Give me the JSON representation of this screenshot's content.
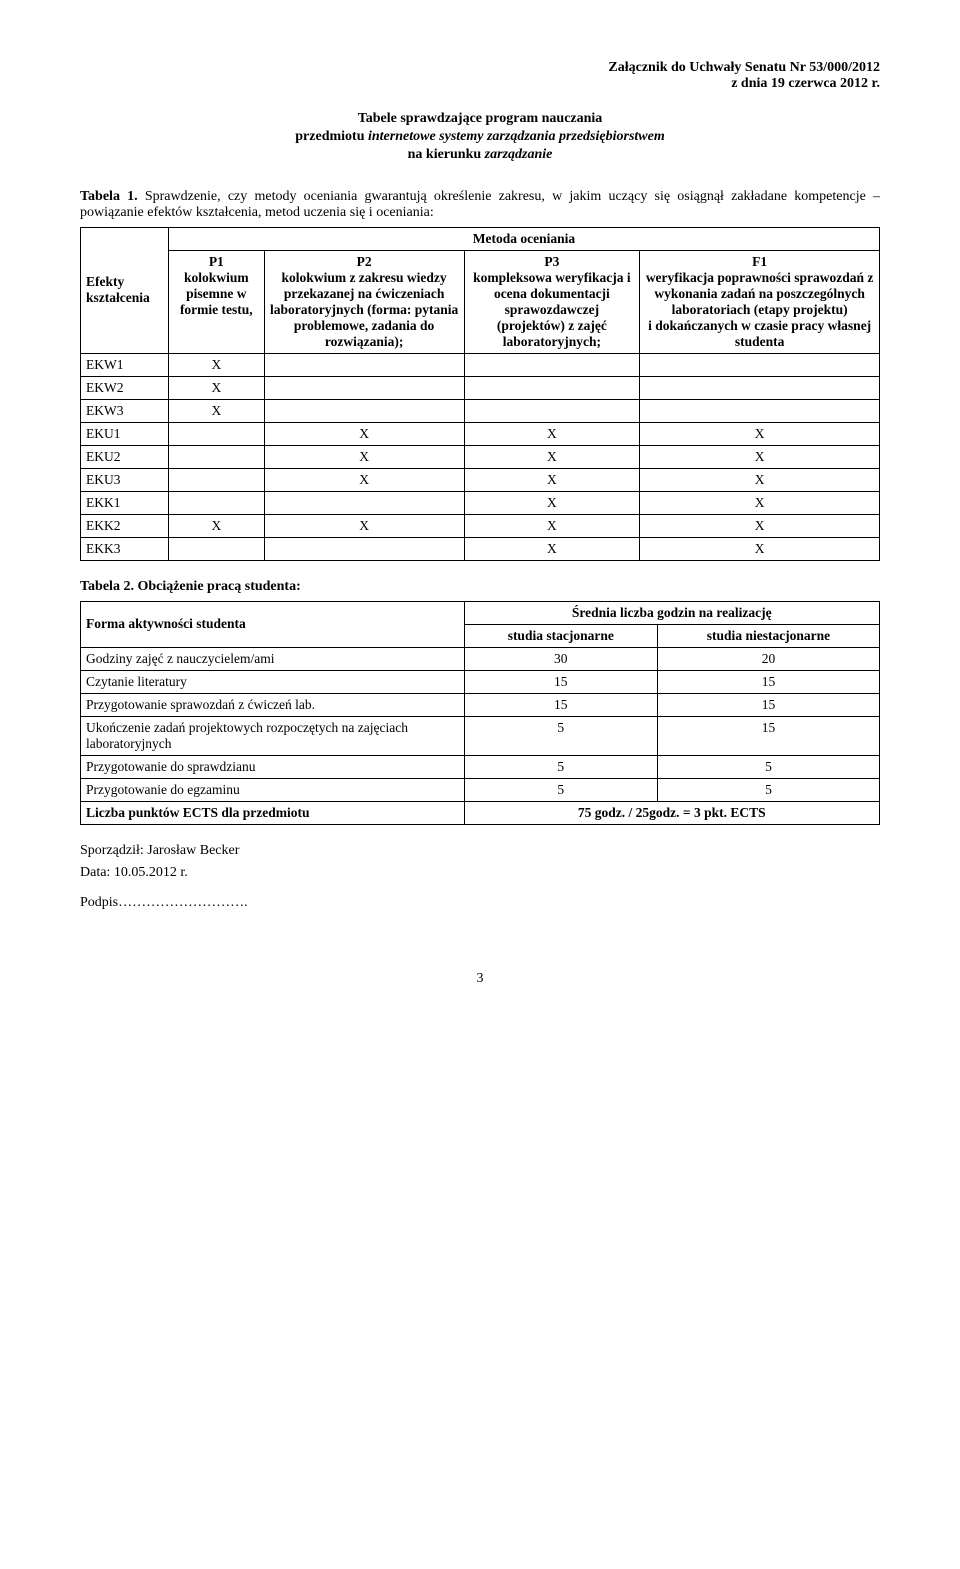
{
  "header": {
    "line1": "Załącznik do Uchwały Senatu Nr 53/000/2012",
    "line2": "z dnia 19 czerwca 2012 r."
  },
  "title": {
    "line1": "Tabele sprawdzające program nauczania",
    "line2_prefix": "przedmiotu ",
    "line2_italic": "internetowe systemy zarządzania przedsiębiorstwem",
    "line3_prefix": "na kierunku ",
    "line3_italic": "zarządzanie"
  },
  "table1": {
    "label": "Tabela 1. ",
    "desc": "Sprawdzenie, czy metody oceniania gwarantują określenie zakresu, w jakim uczący się osiągnął zakładane kompetencje – powiązanie efektów kształcenia, metod uczenia się i oceniania:",
    "rowhead": "Efekty kształcenia",
    "method_header": "Metoda oceniania",
    "cols": {
      "p1": "P1\nkolokwium pisemne w formie testu,",
      "p2": "P2\nkolokwium z zakresu wiedzy przekazanej na ćwiczeniach laboratoryjnych (forma: pytania problemowe, zadania do rozwiązania);",
      "p3": "P3\nkompleksowa weryfikacja i ocena dokumentacji sprawozdawczej (projektów) z zajęć laboratoryjnych;",
      "f1": "F1\nweryfikacja poprawności sprawozdań z wykonania zadań na poszczególnych laboratoriach (etapy projektu)\ni dokańczanych w czasie pracy własnej studenta"
    },
    "rows": [
      {
        "label": "EKW1",
        "p1": "X",
        "p2": "",
        "p3": "",
        "f1": ""
      },
      {
        "label": "EKW2",
        "p1": "X",
        "p2": "",
        "p3": "",
        "f1": ""
      },
      {
        "label": "EKW3",
        "p1": "X",
        "p2": "",
        "p3": "",
        "f1": ""
      },
      {
        "label": "EKU1",
        "p1": "",
        "p2": "X",
        "p3": "X",
        "f1": "X"
      },
      {
        "label": "EKU2",
        "p1": "",
        "p2": "X",
        "p3": "X",
        "f1": "X"
      },
      {
        "label": "EKU3",
        "p1": "",
        "p2": "X",
        "p3": "X",
        "f1": "X"
      },
      {
        "label": "EKK1",
        "p1": "",
        "p2": "",
        "p3": "X",
        "f1": "X"
      },
      {
        "label": "EKK2",
        "p1": "X",
        "p2": "X",
        "p3": "X",
        "f1": "X"
      },
      {
        "label": "EKK3",
        "p1": "",
        "p2": "",
        "p3": "X",
        "f1": "X"
      }
    ]
  },
  "table2": {
    "label": "Tabela 2. Obciążenie pracą studenta:",
    "col_form": "Forma aktywności studenta",
    "col_avg": "Średnia liczba godzin na realizację",
    "col_stat": "studia stacjonarne",
    "col_nstat": "studia niestacjonarne",
    "rows": [
      {
        "label": "Godziny zajęć z nauczycielem/ami",
        "s": "30",
        "n": "20"
      },
      {
        "label": "Czytanie literatury",
        "s": "15",
        "n": "15"
      },
      {
        "label": "Przygotowanie sprawozdań z ćwiczeń lab.",
        "s": "15",
        "n": "15"
      },
      {
        "label": "Ukończenie zadań projektowych rozpoczętych na zajęciach laboratoryjnych",
        "s": "5",
        "n": "15"
      },
      {
        "label": "Przygotowanie do sprawdzianu",
        "s": "5",
        "n": "5"
      },
      {
        "label": "Przygotowanie do egzaminu",
        "s": "5",
        "n": "5"
      }
    ],
    "total_label": "Liczba punktów ECTS  dla przedmiotu",
    "total_value": "75 godz. / 25godz. = 3 pkt. ECTS"
  },
  "footer": {
    "author": "Sporządził: Jarosław Becker",
    "date": "Data: 10.05.2012 r.",
    "signature": "Podpis………………………."
  },
  "page_number": "3"
}
